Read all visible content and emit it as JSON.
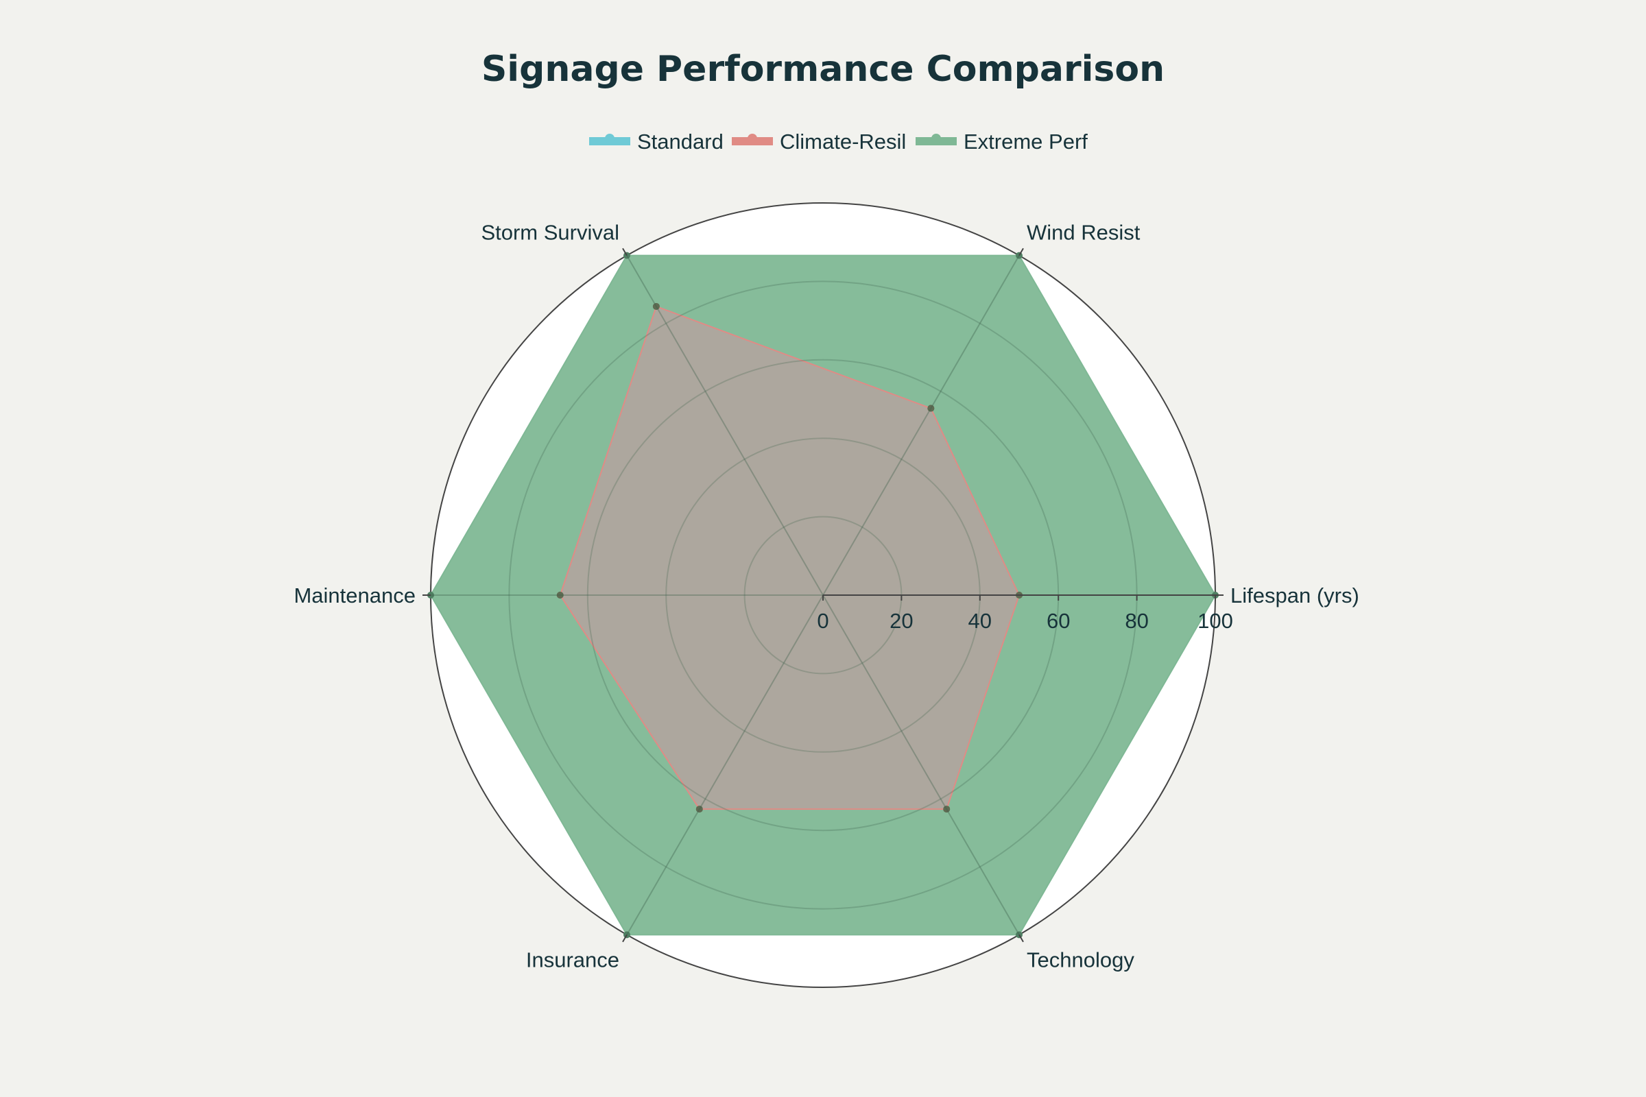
{
  "chart_data": {
    "type": "radar",
    "title": "Signage Performance Comparison",
    "axes": [
      "Lifespan (yrs)",
      "Wind Resist",
      "Storm Survival",
      "Maintenance",
      "Insurance",
      "Technology"
    ],
    "radial_range": [
      0,
      100
    ],
    "radial_ticks": [
      "0",
      "20",
      "40",
      "60",
      "80",
      "100"
    ],
    "grid": true,
    "legend_position": "top-center",
    "series": [
      {
        "name": "Standard",
        "color": "#6fcad6",
        "values": [
          50,
          55,
          85,
          67,
          63,
          63
        ]
      },
      {
        "name": "Climate-Resil",
        "color": "#e08b84",
        "values": [
          50,
          55,
          85,
          67,
          63,
          63
        ]
      },
      {
        "name": "Extreme Perf",
        "color": "#7fb895",
        "values": [
          100,
          100,
          100,
          100,
          100,
          100
        ]
      }
    ]
  }
}
